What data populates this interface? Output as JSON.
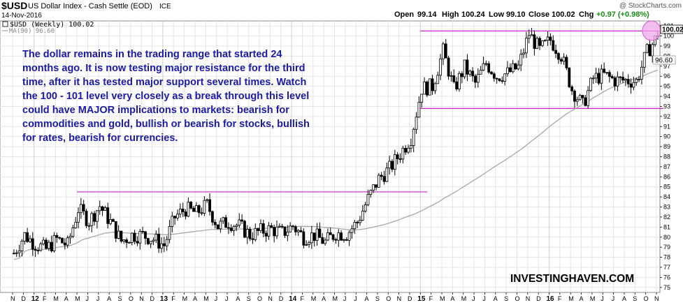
{
  "header": {
    "symbol": "$USD",
    "description": "US Dollar Index - Cash Settle (EOD)",
    "exchange": "ICE",
    "date": "14-Nov-2016",
    "copyright": "@ StockCharts.com",
    "ohlc": {
      "open_label": "Open",
      "open": "99.14",
      "high_label": "High",
      "high": "100.24",
      "low_label": "Low",
      "low": "99.10",
      "close_label": "Close",
      "close": "100.02",
      "chg_label": "Chg",
      "chg": "+0.97 (+0.98%)"
    }
  },
  "legend": {
    "price": "$USD (Weekly) 100.02",
    "ma": "MA(90) 96.60"
  },
  "annotation": {
    "lines": [
      "The dollar remains in the trading range that started 24",
      "months ago. It is now testing major resistance for the third",
      "time, after it has tested major support several times. Watch",
      "the 100 - 101 level very closely as a break through this level",
      "could have MAJOR implications to markets: bearish for",
      "commodities and gold, bullish or bearish for stocks, bullish",
      "for rates, bearish for currencies."
    ]
  },
  "watermark": "INVESTINGHAVEN.COM",
  "colors": {
    "candle": "#000000",
    "ma": "#a8a8a8",
    "resistance": "#cc22cc",
    "annotation": "#1a1aa6",
    "highlight": "#f0a8e8",
    "grid": "#e4e4e4"
  },
  "chart_data": {
    "type": "candlestick",
    "title": "$USD US Dollar Index - Cash Settle (EOD)",
    "ylim": [
      74.5,
      101.5
    ],
    "yticks": [
      75,
      76,
      77,
      78,
      79,
      80,
      81,
      82,
      83,
      84,
      85,
      86,
      87,
      88,
      89,
      90,
      91,
      92,
      93,
      94,
      95,
      96,
      97,
      98,
      99,
      100,
      101
    ],
    "x_axis": {
      "start": "2011-11",
      "months": [
        "N",
        "D",
        "12",
        "F",
        "M",
        "A",
        "M",
        "J",
        "J",
        "A",
        "S",
        "O",
        "N",
        "D",
        "13",
        "F",
        "M",
        "A",
        "M",
        "J",
        "J",
        "A",
        "S",
        "O",
        "N",
        "D",
        "14",
        "F",
        "M",
        "A",
        "M",
        "J",
        "J",
        "A",
        "S",
        "O",
        "N",
        "D",
        "15",
        "F",
        "M",
        "A",
        "M",
        "J",
        "J",
        "A",
        "S",
        "O",
        "N",
        "D",
        "16",
        "F",
        "M",
        "A",
        "M",
        "J",
        "J",
        "A",
        "S",
        "O",
        "N"
      ],
      "year_labels": [
        "12",
        "13",
        "14",
        "15",
        "16"
      ]
    },
    "series": [
      {
        "name": "$USD (Weekly)",
        "last": 100.02,
        "monthly_close": [
          78.4,
          80.2,
          79.3,
          78.8,
          79.8,
          79.2,
          82.8,
          81.6,
          83.1,
          81.5,
          79.6,
          80.2,
          80.2,
          79.8,
          79.2,
          82.0,
          82.8,
          82.4,
          83.2,
          81.1,
          81.5,
          81.1,
          80.2,
          80.6,
          80.8,
          80.4,
          81.1,
          80.0,
          80.2,
          79.5,
          80.4,
          80.3,
          81.5,
          83.8,
          85.8,
          86.8,
          88.3,
          89.9,
          94.8,
          95.0,
          98.5,
          94.7,
          96.9,
          95.3,
          97.3,
          96.0,
          96.3,
          96.9,
          100.2,
          98.6,
          99.6,
          98.1,
          94.7,
          93.1,
          95.8,
          96.1,
          95.6,
          95.6,
          95.5,
          98.4,
          100.0
        ]
      },
      {
        "name": "MA(90)",
        "last": 96.6
      }
    ],
    "reference_lines": [
      {
        "y": 84.5,
        "x_start": "2012-05",
        "x_end": "2015-01"
      },
      {
        "y": 92.8,
        "x_start": "2015-01",
        "x_end": "2016-11"
      },
      {
        "y": 100.5,
        "x_start": "2015-01",
        "x_end": "2016-11"
      }
    ],
    "price_labels": [
      "100.02",
      "96.60"
    ]
  }
}
